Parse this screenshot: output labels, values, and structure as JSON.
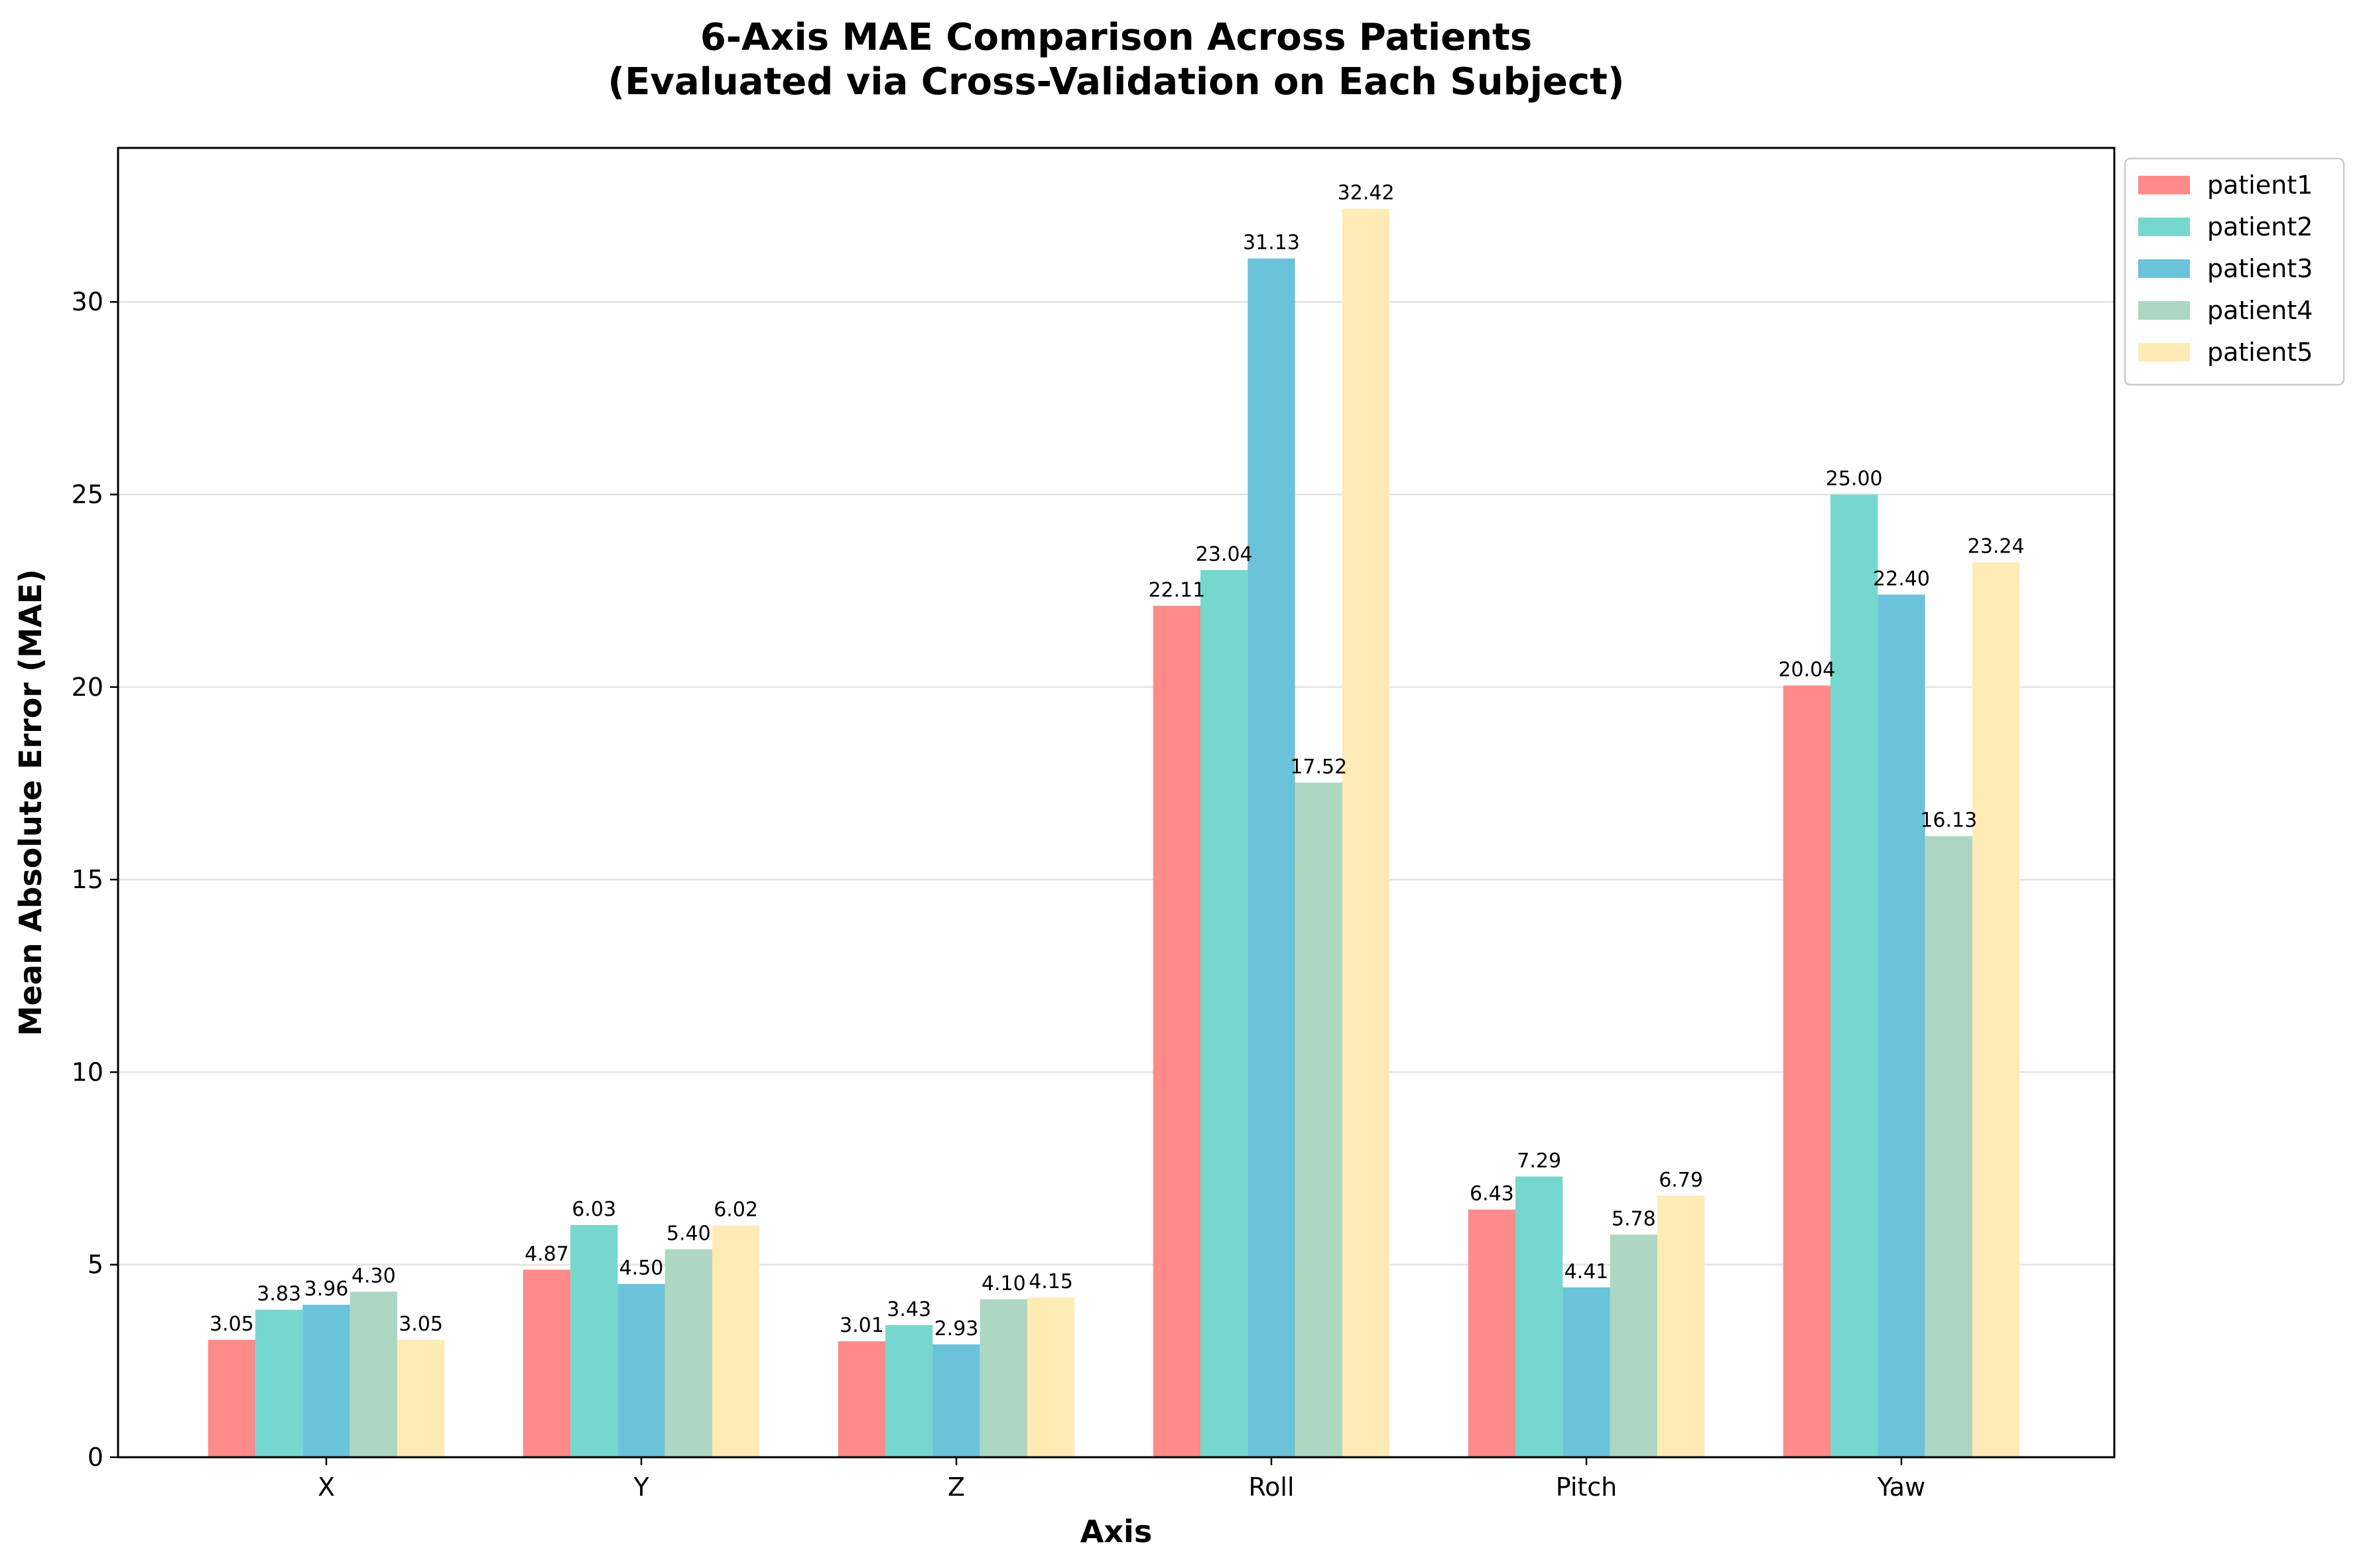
{
  "chart_data": {
    "type": "bar",
    "title_line1": "6-Axis MAE Comparison Across Patients",
    "title_line2": "(Evaluated via Cross-Validation on Each Subject)",
    "xlabel": "Axis",
    "ylabel": "Mean Absolute Error (MAE)",
    "categories": [
      "X",
      "Y",
      "Z",
      "Roll",
      "Pitch",
      "Yaw"
    ],
    "ylim": [
      0,
      34
    ],
    "yticks": [
      0,
      5,
      10,
      15,
      20,
      25,
      30
    ],
    "grid": "horizontal",
    "legend_position": "upper-right-outside",
    "series": [
      {
        "name": "patient1",
        "color": "#FF8A8A",
        "values": [
          3.05,
          4.87,
          3.01,
          22.11,
          6.43,
          20.04
        ],
        "labels": [
          "3.05",
          "4.87",
          "3.01",
          "22.11",
          "6.43",
          "20.04"
        ]
      },
      {
        "name": "patient2",
        "color": "#76D7CF",
        "values": [
          3.83,
          6.03,
          3.43,
          23.04,
          7.29,
          25.0
        ],
        "labels": [
          "3.83",
          "6.03",
          "3.43",
          "23.04",
          "7.29",
          "25.00"
        ]
      },
      {
        "name": "patient3",
        "color": "#6AC3D9",
        "values": [
          3.96,
          4.5,
          2.93,
          31.13,
          4.41,
          22.4
        ],
        "labels": [
          "3.96",
          "4.50",
          "2.93",
          "31.13",
          "4.41",
          "22.40"
        ]
      },
      {
        "name": "patient4",
        "color": "#ADD7C3",
        "values": [
          4.3,
          5.4,
          4.1,
          17.52,
          5.78,
          16.13
        ],
        "labels": [
          "4.30",
          "5.40",
          "4.10",
          "17.52",
          "5.78",
          "16.13"
        ]
      },
      {
        "name": "patient5",
        "color": "#FFEBB6",
        "values": [
          3.05,
          6.02,
          4.15,
          32.42,
          6.79,
          23.24
        ],
        "labels": [
          "3.05",
          "6.02",
          "4.15",
          "32.42",
          "6.79",
          "23.24"
        ]
      }
    ]
  }
}
